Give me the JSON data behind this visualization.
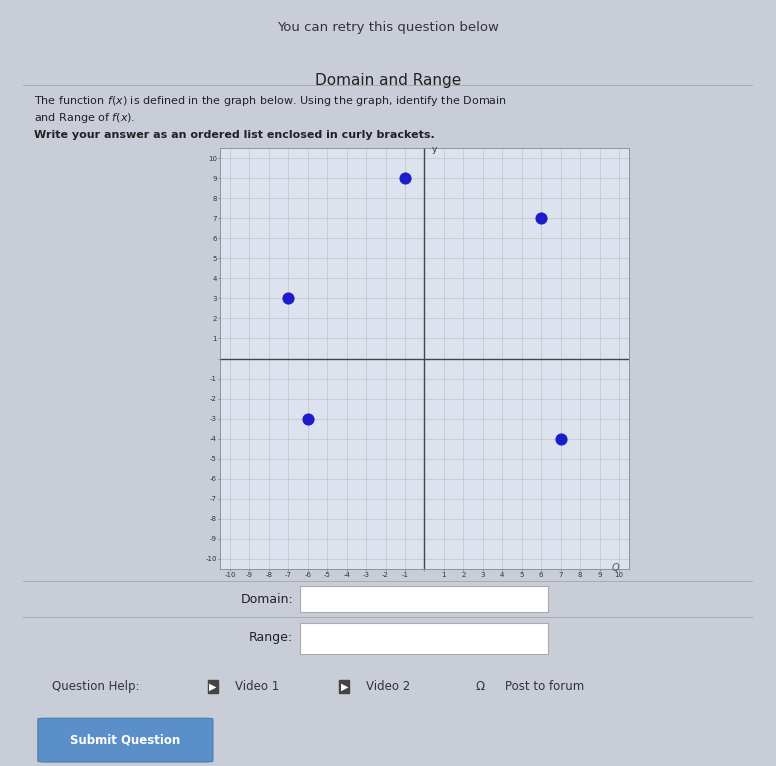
{
  "title": "Domain and Range",
  "subtitle_line1": "The function $f(x)$ is defined in the graph below. Using the graph, identify the Domain",
  "subtitle_line2": "and Range of $f(x)$.",
  "instruction": "Write your answer as an ordered list enclosed in curly brackets.",
  "points": [
    [
      -1,
      9
    ],
    [
      -7,
      3
    ],
    [
      6,
      7
    ],
    [
      -6,
      -3
    ],
    [
      7,
      -4
    ]
  ],
  "point_color": "#1c1ccc",
  "point_size": 60,
  "xlim": [
    -10.5,
    10.5
  ],
  "ylim": [
    -10.5,
    10.5
  ],
  "grid_color": "#bbbbbb",
  "axis_color": "#444444",
  "graph_bg": "#dde3ee",
  "outer_bg": "#c8cdd8",
  "panel_bg": "#ffffff",
  "domain_label": "Domain:",
  "range_label": "Range:",
  "top_text": "You can retry this question below",
  "bottom_help": "Question Help:",
  "video1": "Video 1",
  "video2": "Video 2",
  "post": "Post to forum",
  "submit": "Submit Question",
  "submit_color": "#5b8fc9"
}
